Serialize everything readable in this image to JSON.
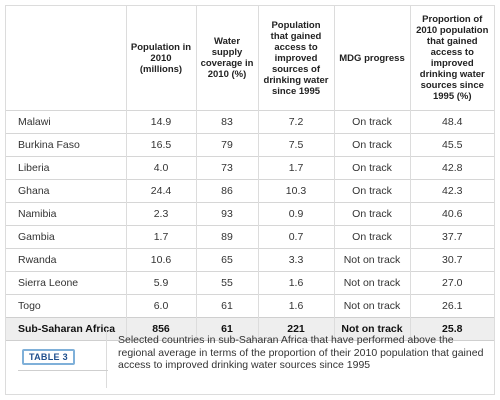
{
  "table": {
    "columns": [
      "",
      "Population in 2010 (millions)",
      "Water supply coverage in 2010 (%)",
      "Population that gained access to improved sources of drinking water since 1995",
      "MDG progress",
      "Proportion of 2010 population that gained access to improved drinking water sources since 1995 (%)"
    ],
    "rows": [
      [
        "Malawi",
        "14.9",
        "83",
        "7.2",
        "On track",
        "48.4"
      ],
      [
        "Burkina Faso",
        "16.5",
        "79",
        "7.5",
        "On track",
        "45.5"
      ],
      [
        "Liberia",
        "4.0",
        "73",
        "1.7",
        "On track",
        "42.8"
      ],
      [
        "Ghana",
        "24.4",
        "86",
        "10.3",
        "On track",
        "42.3"
      ],
      [
        "Namibia",
        "2.3",
        "93",
        "0.9",
        "On track",
        "40.6"
      ],
      [
        "Gambia",
        "1.7",
        "89",
        "0.7",
        "On track",
        "37.7"
      ],
      [
        "Rwanda",
        "10.6",
        "65",
        "3.3",
        "Not on track",
        "30.7"
      ],
      [
        "Sierra Leone",
        "5.9",
        "55",
        "1.6",
        "Not on track",
        "27.0"
      ],
      [
        "Togo",
        "6.0",
        "61",
        "1.6",
        "Not on track",
        "26.1"
      ]
    ],
    "total": [
      "Sub-Saharan Africa",
      "856",
      "61",
      "221",
      "Not on track",
      "25.8"
    ]
  },
  "caption": {
    "label": "TABLE 3",
    "text": "Selected countries in sub-Saharan Africa that have performed above the regional average in terms of the proportion of their 2010 population that gained access to improved drinking water sources since 1995"
  }
}
